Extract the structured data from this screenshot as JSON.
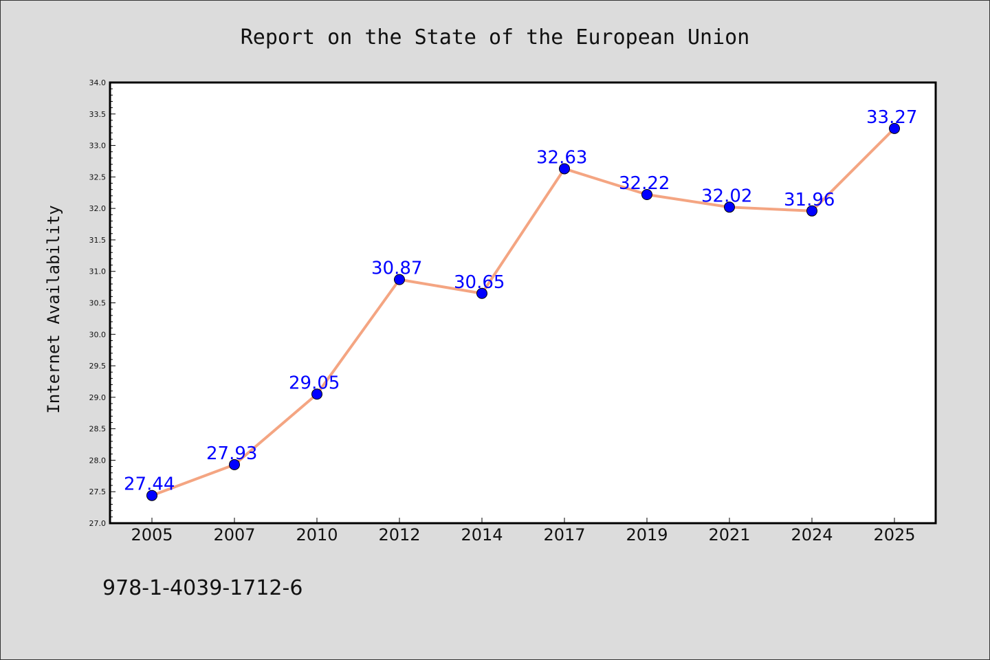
{
  "chart_data": {
    "type": "line",
    "title": "Report on the State of the European Union",
    "xlabel": "",
    "ylabel": "Internet Availability",
    "categories": [
      "2005",
      "2007",
      "2010",
      "2012",
      "2014",
      "2017",
      "2019",
      "2021",
      "2024",
      "2025"
    ],
    "series": [
      {
        "values": [
          27.44,
          27.93,
          29.05,
          30.87,
          30.65,
          32.63,
          32.22,
          32.02,
          31.96,
          33.27
        ],
        "data_labels": [
          "27.44",
          "27.93",
          "29.05",
          "30.87",
          "30.65",
          "32.63",
          "32.22",
          "32.02",
          "31.96",
          "33.27"
        ],
        "line_color": "#f4a582",
        "marker_color": "#0000ff",
        "label_color": "#0000ff"
      }
    ],
    "ylim": [
      27.0,
      34.0
    ],
    "yticks": [
      "27.0",
      "27.5",
      "28.0",
      "28.5",
      "29.0",
      "29.5",
      "30.0",
      "30.5",
      "31.0",
      "31.5",
      "32.0",
      "32.5",
      "33.0",
      "33.5",
      "34.0"
    ],
    "grid": false,
    "legend": "none",
    "background_color": "#dcdcdc",
    "plot_background_color": "#ffffff"
  },
  "footer": {
    "text": "978-1-4039-1712-6"
  }
}
